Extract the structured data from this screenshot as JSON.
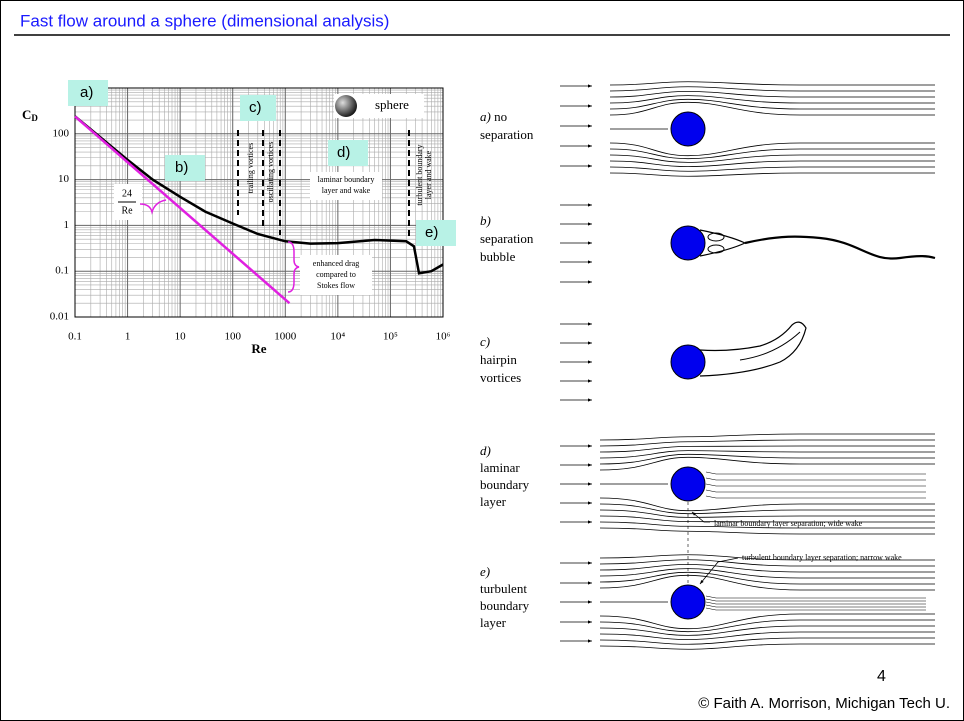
{
  "header": {
    "title": "Fast flow around a sphere (dimensional analysis)"
  },
  "chart_data": {
    "type": "line",
    "xlabel": "Re",
    "ylabel": "C",
    "ylabel_subscript": "D",
    "xlog": true,
    "ylog": true,
    "grid": true,
    "xlim": [
      0.1,
      1000000
    ],
    "ylim": [
      0.01,
      1000
    ],
    "xticks": [
      0.1,
      1,
      10,
      100,
      1000,
      {
        "value": 10000,
        "label": "10⁴"
      },
      {
        "value": 100000,
        "label": "10⁵"
      },
      {
        "value": 1000000,
        "label": "10⁶"
      }
    ],
    "yticks": [
      0.01,
      0.1,
      1,
      10,
      100
    ],
    "series": [
      {
        "color": "#000000",
        "x": [
          0.1,
          0.3,
          1,
          3,
          10,
          30,
          100,
          300,
          1000,
          3000,
          10000,
          50000,
          200000,
          280000,
          350000,
          600000,
          1000000
        ],
        "values": [
          240,
          85,
          27,
          10,
          4.2,
          2,
          1.1,
          0.65,
          0.45,
          0.4,
          0.41,
          0.48,
          0.45,
          0.35,
          0.09,
          0.1,
          0.14
        ]
      },
      {
        "color": "#e020e0",
        "x": [
          0.1,
          1200
        ],
        "values": [
          240,
          0.02
        ]
      }
    ]
  },
  "chart_notes": {
    "boxes": [
      "a)",
      "b)",
      "c)",
      "d)",
      "e)"
    ],
    "stokes_num": "24",
    "stokes_den": "Re",
    "trailing": "trailing vortices",
    "oscillating": "oscillating vortices",
    "laminar": [
      "laminar boundary",
      "layer and wake"
    ],
    "turbulent": [
      "turbulent boundary",
      "layer and wake"
    ],
    "enhanced": [
      "enhanced drag",
      "compared to",
      "Stokes flow"
    ],
    "sphere": "sphere"
  },
  "panels": [
    {
      "letter": "a)",
      "lines": [
        "no",
        "separation"
      ]
    },
    {
      "letter": "b)",
      "lines": [
        "separation",
        "bubble"
      ]
    },
    {
      "letter": "c)",
      "lines": [
        "hairpin",
        "vortices"
      ]
    },
    {
      "letter": "d)",
      "lines": [
        "laminar",
        "boundary",
        "layer"
      ]
    },
    {
      "letter": "e)",
      "lines": [
        "turbulent",
        "boundary",
        "layer"
      ]
    }
  ],
  "notes": {
    "laminar_sep": "laminar boundary layer separation; wide wake",
    "turbulent_sep": "turbulent boundary layer separation; narrow wake"
  },
  "footer": {
    "page": "4",
    "credit": "© Faith A. Morrison, Michigan Tech U."
  }
}
